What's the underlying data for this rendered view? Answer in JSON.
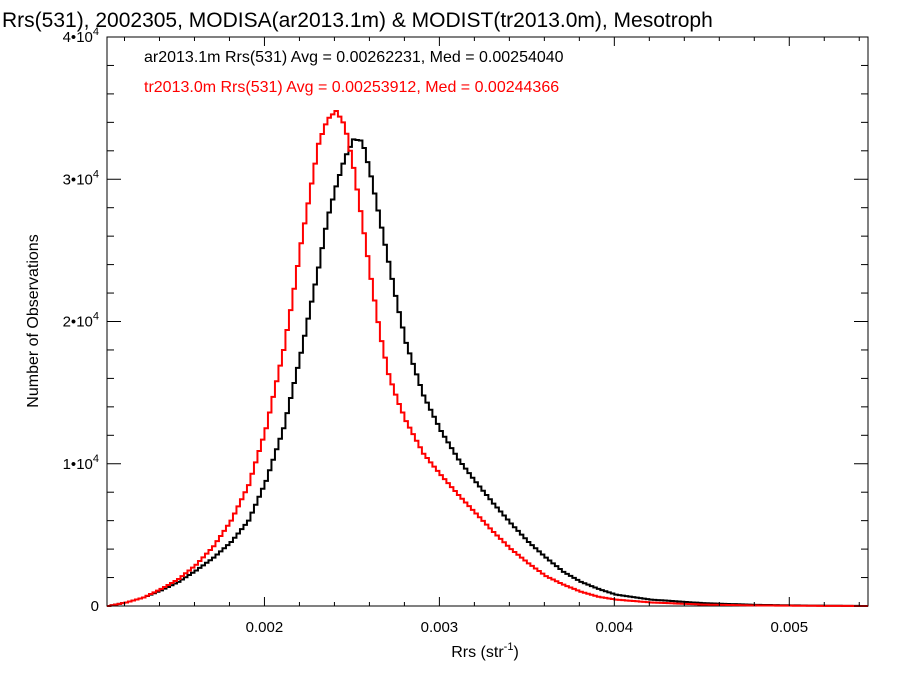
{
  "chart_data": {
    "type": "line",
    "title": "Rrs(531), 2002305, MODISA(ar2013.1m) & MODIST(tr2013.0m), Mesotroph",
    "xlabel": "Rrs (str",
    "xlabel_sup": "-1",
    "xlabel_suffix": ")",
    "ylabel": "Number of Observations",
    "xlim": [
      0.0011,
      0.00545
    ],
    "ylim": [
      0,
      40000
    ],
    "x_ticks": [
      {
        "value": 0.002,
        "label": "0.002"
      },
      {
        "value": 0.003,
        "label": "0.003"
      },
      {
        "value": 0.004,
        "label": "0.004"
      },
      {
        "value": 0.005,
        "label": "0.005"
      }
    ],
    "y_ticks": [
      {
        "value": 0,
        "base": "0",
        "exp": ""
      },
      {
        "value": 10000,
        "base": "1•10",
        "exp": "4"
      },
      {
        "value": 20000,
        "base": "2•10",
        "exp": "4"
      },
      {
        "value": 30000,
        "base": "3•10",
        "exp": "4"
      },
      {
        "value": 40000,
        "base": "4•10",
        "exp": "4"
      }
    ],
    "legend_placement": "top-left",
    "series": [
      {
        "label": "ar2013.1m Rrs(531) Avg = 0.00262231, Med = 0.00254040",
        "color": "#000000",
        "x": [
          0.0011,
          0.0012,
          0.0013,
          0.0014,
          0.0015,
          0.0016,
          0.0017,
          0.0018,
          0.0019,
          0.002,
          0.0021,
          0.0022,
          0.00225,
          0.0023,
          0.00235,
          0.0024,
          0.00245,
          0.0025,
          0.00255,
          0.0026,
          0.00265,
          0.0027,
          0.00275,
          0.0028,
          0.0029,
          0.003,
          0.0031,
          0.0032,
          0.0033,
          0.0034,
          0.0035,
          0.0036,
          0.0037,
          0.0038,
          0.0039,
          0.004,
          0.0042,
          0.0045,
          0.0048,
          0.0051,
          0.00545
        ],
        "y": [
          0,
          250,
          600,
          1100,
          1700,
          2500,
          3400,
          4500,
          6000,
          8800,
          12500,
          17800,
          20800,
          23800,
          27200,
          29500,
          31500,
          32800,
          32700,
          30200,
          27200,
          24200,
          21200,
          18500,
          14800,
          12300,
          10300,
          8700,
          7200,
          5800,
          4500,
          3400,
          2400,
          1700,
          1200,
          800,
          450,
          200,
          80,
          30,
          0
        ]
      },
      {
        "label": "tr2013.0m Rrs(531) Avg = 0.00253912, Med = 0.00244366",
        "color": "#ff0000",
        "x": [
          0.0011,
          0.0012,
          0.0013,
          0.0014,
          0.0015,
          0.0016,
          0.0017,
          0.0018,
          0.0019,
          0.002,
          0.0021,
          0.00215,
          0.0022,
          0.00225,
          0.0023,
          0.00235,
          0.0024,
          0.00245,
          0.0025,
          0.00255,
          0.0026,
          0.00265,
          0.0027,
          0.00275,
          0.0028,
          0.0029,
          0.003,
          0.0031,
          0.0032,
          0.0033,
          0.0034,
          0.0035,
          0.0036,
          0.0037,
          0.0038,
          0.0039,
          0.004,
          0.0042,
          0.0045,
          0.0048,
          0.0051,
          0.00545
        ],
        "y": [
          0,
          250,
          600,
          1200,
          1900,
          2900,
          4200,
          6000,
          8500,
          12500,
          18000,
          21500,
          25500,
          29000,
          32500,
          34200,
          34800,
          33800,
          30800,
          27000,
          23000,
          19200,
          16300,
          14500,
          13000,
          10700,
          9200,
          7800,
          6500,
          5200,
          4000,
          3000,
          2100,
          1500,
          1000,
          650,
          450,
          250,
          100,
          40,
          15,
          0
        ]
      }
    ]
  }
}
